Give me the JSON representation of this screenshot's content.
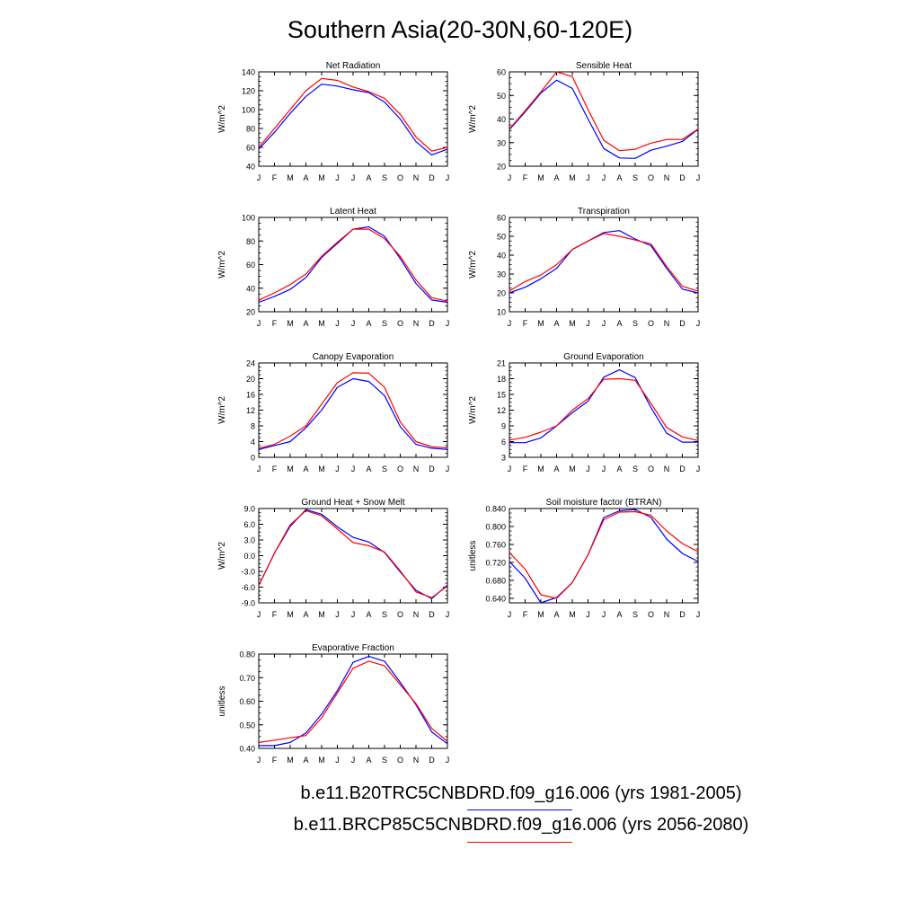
{
  "figure": {
    "title": "Southern Asia(20-30N,60-120E)"
  },
  "legend": [
    {
      "label": "b.e11.B20TRC5CNBDRD.f09_g16.006 (yrs 1981-2005)",
      "color": "#0000ff"
    },
    {
      "label": "b.e11.BRCP85C5CNBDRD.f09_g16.006 (yrs 2056-2080)",
      "color": "#ff0000"
    }
  ],
  "chart_data": [
    {
      "type": "line",
      "title": "Net Radiation",
      "ylabel": "W/m^2",
      "x": [
        "J",
        "F",
        "M",
        "A",
        "M",
        "J",
        "J",
        "A",
        "S",
        "O",
        "N",
        "D",
        "J"
      ],
      "ylim": [
        40,
        140
      ],
      "yticks": [
        "40",
        "60",
        "80",
        "100",
        "120",
        "140"
      ],
      "series": [
        {
          "color": "#0000ff",
          "values": [
            58,
            76,
            96,
            114,
            127,
            125,
            121,
            118,
            108,
            90,
            66,
            52,
            58
          ]
        },
        {
          "color": "#ff0000",
          "values": [
            60,
            80,
            100,
            120,
            133,
            131,
            124,
            119,
            112,
            95,
            71,
            56,
            60
          ]
        }
      ]
    },
    {
      "type": "line",
      "title": "Sensible Heat",
      "ylabel": "W/m^2",
      "x": [
        "J",
        "F",
        "M",
        "A",
        "M",
        "J",
        "J",
        "A",
        "S",
        "O",
        "N",
        "D",
        "J"
      ],
      "ylim": [
        20,
        60
      ],
      "yticks": [
        "20",
        "30",
        "40",
        "50",
        "60"
      ],
      "series": [
        {
          "color": "#0000ff",
          "values": [
            35.5,
            43,
            51,
            56.5,
            53,
            40,
            27.5,
            23.5,
            23.3,
            26.8,
            28.5,
            30.5,
            35.7
          ]
        },
        {
          "color": "#ff0000",
          "values": [
            35.8,
            43.5,
            51.5,
            60,
            58,
            44,
            31,
            26.6,
            27.2,
            29.8,
            31.3,
            31.4,
            35.8
          ]
        }
      ]
    },
    {
      "type": "line",
      "title": "Latent Heat",
      "ylabel": "W/m^2",
      "x": [
        "J",
        "F",
        "M",
        "A",
        "M",
        "J",
        "J",
        "A",
        "S",
        "O",
        "N",
        "D",
        "J"
      ],
      "ylim": [
        20,
        100
      ],
      "yticks": [
        "20",
        "40",
        "60",
        "80",
        "100"
      ],
      "series": [
        {
          "color": "#0000ff",
          "values": [
            28,
            33,
            39,
            49,
            66,
            78,
            90,
            92,
            84,
            65,
            44,
            30,
            28
          ]
        },
        {
          "color": "#ff0000",
          "values": [
            30,
            36,
            43,
            52,
            67,
            79,
            90,
            90,
            82,
            67,
            47,
            32,
            29
          ]
        }
      ]
    },
    {
      "type": "line",
      "title": "Transpiration",
      "ylabel": "W/m^2",
      "x": [
        "J",
        "F",
        "M",
        "A",
        "M",
        "J",
        "J",
        "A",
        "S",
        "O",
        "N",
        "D",
        "J"
      ],
      "ylim": [
        10,
        60
      ],
      "yticks": [
        "10",
        "20",
        "30",
        "40",
        "50",
        "60"
      ],
      "series": [
        {
          "color": "#0000ff",
          "values": [
            20,
            23,
            27.5,
            33,
            43,
            47.5,
            52,
            53,
            48.5,
            45,
            33,
            22,
            20
          ]
        },
        {
          "color": "#ff0000",
          "values": [
            21,
            26,
            29.5,
            35,
            43,
            47.5,
            51.5,
            50,
            48,
            46,
            34,
            23.5,
            21
          ]
        }
      ]
    },
    {
      "type": "line",
      "title": "Canopy Evaporation",
      "ylabel": "W/m^2",
      "x": [
        "J",
        "F",
        "M",
        "A",
        "M",
        "J",
        "J",
        "A",
        "S",
        "O",
        "N",
        "D",
        "J"
      ],
      "ylim": [
        0,
        24
      ],
      "yticks": [
        "0",
        "4",
        "8",
        "12",
        "16",
        "20",
        "24"
      ],
      "series": [
        {
          "color": "#0000ff",
          "values": [
            2,
            3,
            4,
            7.5,
            12,
            17.8,
            20,
            19.3,
            15.7,
            7.8,
            3.3,
            2.3,
            2
          ]
        },
        {
          "color": "#ff0000",
          "values": [
            2.3,
            3.3,
            5.4,
            8,
            13.5,
            19,
            21.5,
            21.4,
            17.8,
            9,
            4,
            2.7,
            2.4
          ]
        }
      ]
    },
    {
      "type": "line",
      "title": "Ground Evaporation",
      "ylabel": "W/m^2",
      "x": [
        "J",
        "F",
        "M",
        "A",
        "M",
        "J",
        "J",
        "A",
        "S",
        "O",
        "N",
        "D",
        "J"
      ],
      "ylim": [
        3,
        21
      ],
      "yticks": [
        "3",
        "6",
        "9",
        "12",
        "15",
        "18",
        "21"
      ],
      "series": [
        {
          "color": "#0000ff",
          "values": [
            5.8,
            5.8,
            6.7,
            9,
            11.5,
            13.7,
            18.3,
            19.7,
            18.2,
            12.5,
            7.6,
            5.9,
            5.9
          ]
        },
        {
          "color": "#ff0000",
          "values": [
            6.3,
            6.8,
            7.8,
            9,
            12,
            14.2,
            17.9,
            18,
            17.7,
            13.3,
            8.7,
            6.9,
            6.2
          ]
        }
      ]
    },
    {
      "type": "line",
      "title": "Ground Heat + Snow Melt",
      "ylabel": "W/m^2",
      "x": [
        "J",
        "F",
        "M",
        "A",
        "M",
        "J",
        "J",
        "A",
        "S",
        "O",
        "N",
        "D",
        "J"
      ],
      "ylim": [
        -9,
        9
      ],
      "yticks": [
        "-9.0",
        "-6.0",
        "-3.0",
        "0.0",
        "3.0",
        "6.0",
        "9.0"
      ],
      "series": [
        {
          "color": "#0000ff",
          "values": [
            -5.7,
            0.5,
            5.6,
            8.8,
            7.9,
            5.5,
            3.5,
            2.6,
            0.6,
            -3.1,
            -6.6,
            -8.2,
            -5.6
          ]
        },
        {
          "color": "#ff0000",
          "values": [
            -5.7,
            0.5,
            5.9,
            8.6,
            7.6,
            5.1,
            2.5,
            1.9,
            0.7,
            -2.9,
            -6.9,
            -8.0,
            -5.8
          ]
        }
      ]
    },
    {
      "type": "line",
      "title": "Soil moisture factor (BTRAN)",
      "ylabel": "unitless",
      "x": [
        "J",
        "F",
        "M",
        "A",
        "M",
        "J",
        "J",
        "A",
        "S",
        "O",
        "N",
        "D",
        "J"
      ],
      "ylim": [
        0.63,
        0.84
      ],
      "yticks": [
        "0.640",
        "0.680",
        "0.720",
        "0.760",
        "0.800",
        "0.840"
      ],
      "series": [
        {
          "color": "#0000ff",
          "values": [
            0.722,
            0.685,
            0.63,
            0.642,
            0.675,
            0.737,
            0.82,
            0.835,
            0.838,
            0.82,
            0.772,
            0.74,
            0.722
          ]
        },
        {
          "color": "#ff0000",
          "values": [
            0.742,
            0.705,
            0.648,
            0.64,
            0.675,
            0.737,
            0.815,
            0.832,
            0.833,
            0.825,
            0.79,
            0.762,
            0.744
          ]
        }
      ]
    },
    {
      "type": "line",
      "title": "Evaporative Fraction",
      "ylabel": "unitless",
      "x": [
        "J",
        "F",
        "M",
        "A",
        "M",
        "J",
        "J",
        "A",
        "S",
        "O",
        "N",
        "D",
        "J"
      ],
      "ylim": [
        0.4,
        0.8
      ],
      "yticks": [
        "0.40",
        "0.50",
        "0.60",
        "0.70",
        "0.80"
      ],
      "series": [
        {
          "color": "#0000ff",
          "values": [
            0.412,
            0.412,
            0.425,
            0.465,
            0.545,
            0.645,
            0.765,
            0.79,
            0.77,
            0.68,
            0.585,
            0.47,
            0.42
          ]
        },
        {
          "color": "#ff0000",
          "values": [
            0.425,
            0.435,
            0.445,
            0.455,
            0.53,
            0.635,
            0.74,
            0.77,
            0.75,
            0.67,
            0.59,
            0.485,
            0.43
          ]
        }
      ]
    }
  ]
}
